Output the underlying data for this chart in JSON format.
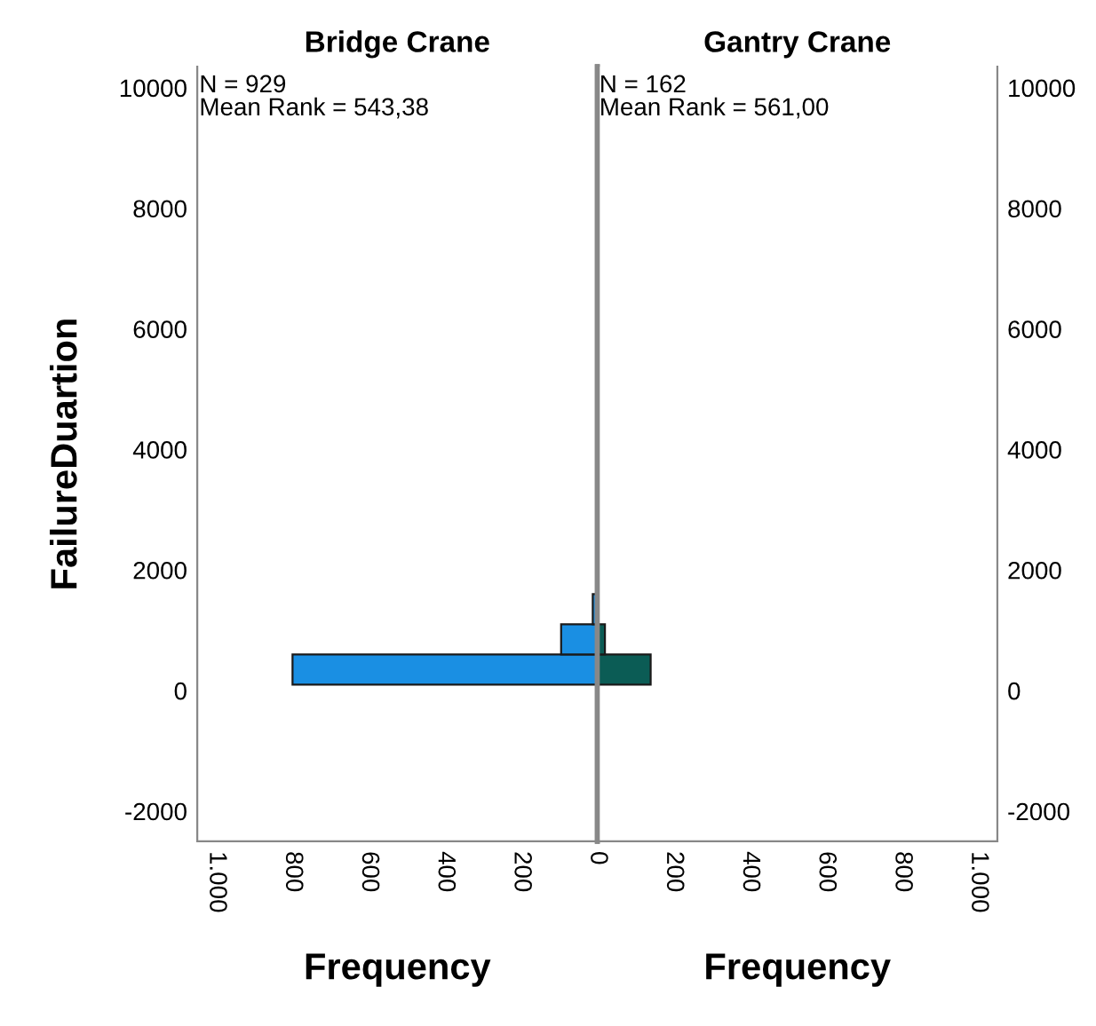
{
  "chart_data": [
    {
      "type": "histogram",
      "orientation": "horizontal",
      "title": "Bridge Crane",
      "xlabel": "Frequency",
      "ylabel": "FailureDuartion",
      "annotations": [
        "N = 929\nMean Rank = 543,38"
      ],
      "color": "#1a8fe3",
      "bins": [
        100,
        600,
        1100,
        1600,
        2100,
        2600,
        3100,
        3600,
        4100,
        4600,
        5100,
        5600,
        6100,
        6600,
        7100,
        7600
      ],
      "values": [
        800,
        95,
        12,
        0,
        0,
        0,
        0,
        0,
        0,
        0,
        0,
        0,
        1,
        0,
        1
      ],
      "xlim": [
        1050,
        0
      ],
      "xticks": [
        {
          "value": 1000,
          "label": "1.000"
        },
        800,
        600,
        400,
        200,
        0
      ],
      "ylim": [
        -2500,
        10350
      ],
      "yticks": [
        -2000,
        0,
        2000,
        4000,
        6000,
        8000,
        10000
      ]
    },
    {
      "type": "histogram",
      "orientation": "horizontal",
      "title": "Gantry Crane",
      "xlabel": "Frequency",
      "annotations": [
        "N = 162\nMean Rank = 561,00"
      ],
      "color": "#0b5c55",
      "bins": [
        100,
        600,
        1100,
        1600,
        2100,
        2600,
        3100,
        3600,
        4100,
        4600,
        5100,
        5600,
        6100,
        6600,
        7100,
        7600
      ],
      "values": [
        140,
        20,
        0,
        0,
        0,
        0,
        0,
        0,
        0,
        0,
        0,
        0,
        0,
        0,
        0
      ],
      "xlim": [
        0,
        1050
      ],
      "xticks": [
        200,
        400,
        600,
        800,
        {
          "value": 1000,
          "label": "1.000"
        }
      ],
      "ylim": [
        -2500,
        10350
      ],
      "yticks": [
        -2000,
        0,
        2000,
        4000,
        6000,
        8000,
        10000
      ]
    }
  ]
}
